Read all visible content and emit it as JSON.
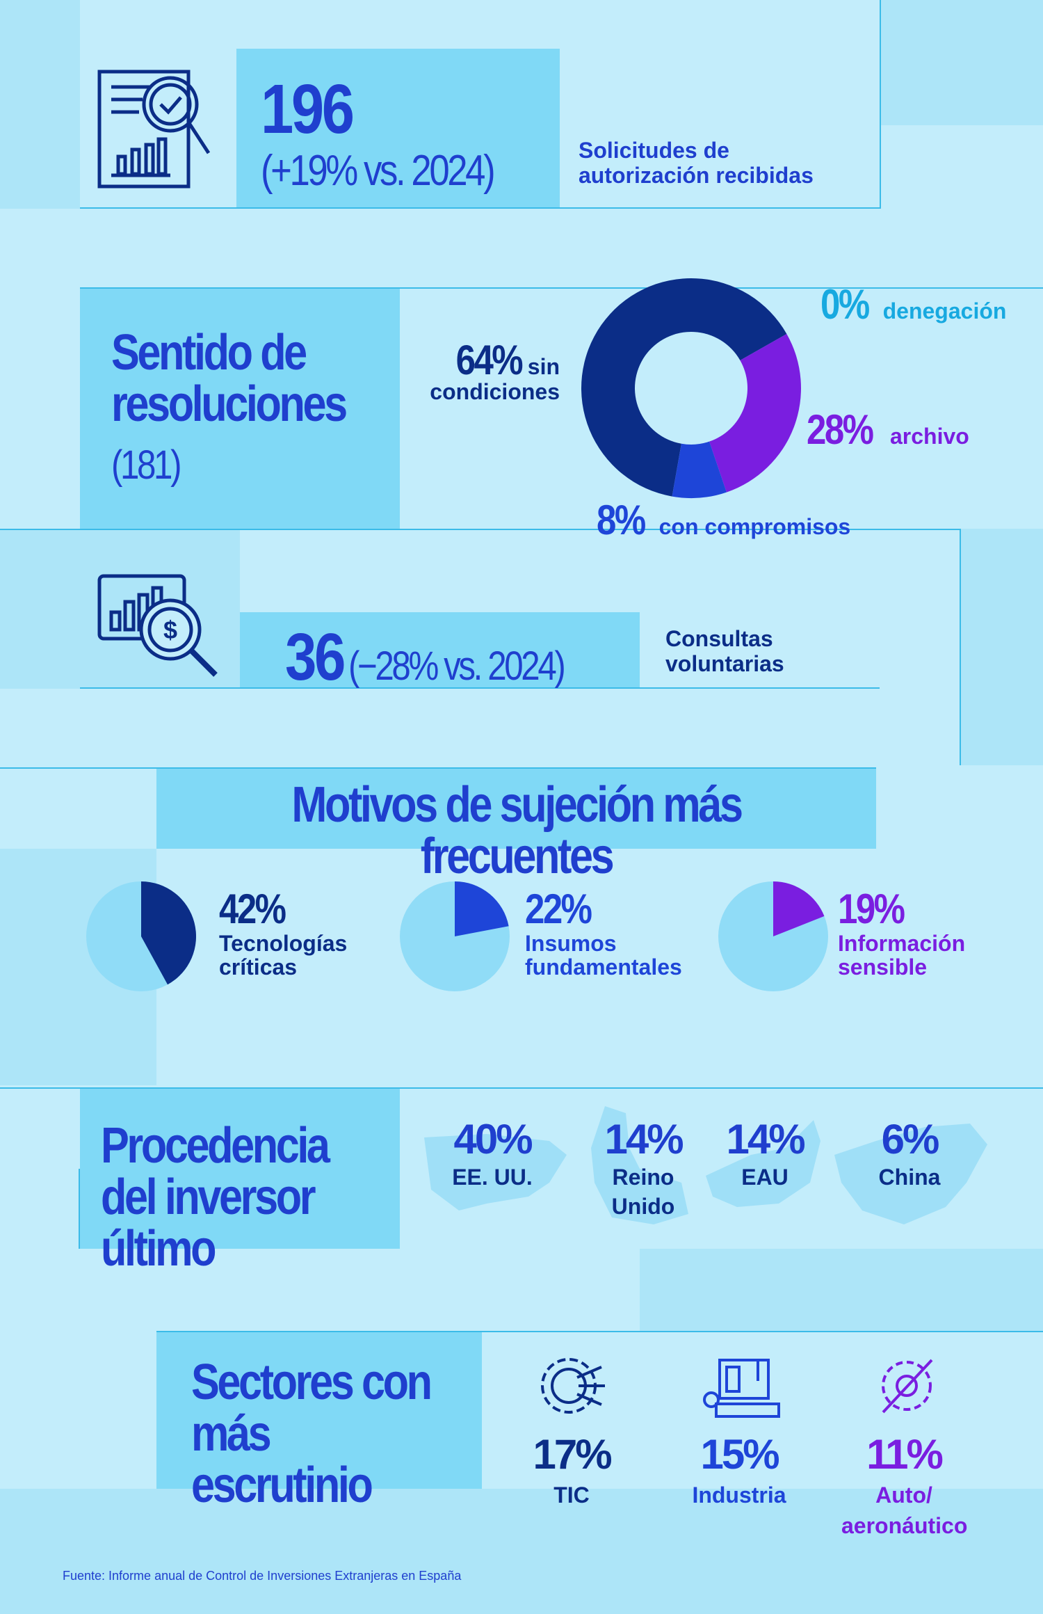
{
  "requests": {
    "number": "196",
    "change": "(+19% vs. 2024)",
    "label": "Solicitudes de autorización recibidas"
  },
  "resolutions": {
    "title": "Sentido de resoluciones",
    "count": "(181)",
    "chart": {
      "type": "donut",
      "categories": [
        "sin condiciones",
        "denegación",
        "archivo",
        "con compromisos"
      ],
      "values": [
        64,
        0,
        28,
        8
      ],
      "value_labels": [
        "64%",
        "0%",
        "28%",
        "8%"
      ],
      "colors": [
        "#0b2d87",
        "#17a9e0",
        "#7a1ee0",
        "#1e45d8"
      ]
    }
  },
  "consultations": {
    "number": "36",
    "change": "(−28% vs. 2024)",
    "label": "Consultas voluntarias"
  },
  "reasons": {
    "title": "Motivos de sujeción más frecuentes",
    "charts": [
      {
        "type": "pie",
        "category": "Tecnologías críticas",
        "value": 42,
        "value_label": "42%",
        "color": "#0b2d87"
      },
      {
        "type": "pie",
        "category": "Insumos fundamentales",
        "value": 22,
        "value_label": "22%",
        "color": "#1e45d8"
      },
      {
        "type": "pie",
        "category": "Información sensible",
        "value": 19,
        "value_label": "19%",
        "color": "#7a1ee0"
      }
    ]
  },
  "origin": {
    "title": "Procedencia del inversor último",
    "items": [
      {
        "pct": "40%",
        "label": "EE. UU."
      },
      {
        "pct": "14%",
        "label": "Reino Unido"
      },
      {
        "pct": "14%",
        "label": "EAU"
      },
      {
        "pct": "6%",
        "label": "China"
      }
    ]
  },
  "sectors": {
    "title": "Sectores con más escrutinio",
    "items": [
      {
        "pct": "17%",
        "label": "TIC",
        "color": "#0b2d87"
      },
      {
        "pct": "15%",
        "label": "Industria",
        "color": "#1e45d8"
      },
      {
        "pct": "11%",
        "label": "Auto/ aeronáutico",
        "color": "#7a1ee0"
      }
    ]
  },
  "source": "Fuente: Informe anual de Control de Inversiones Extranjeras en España"
}
